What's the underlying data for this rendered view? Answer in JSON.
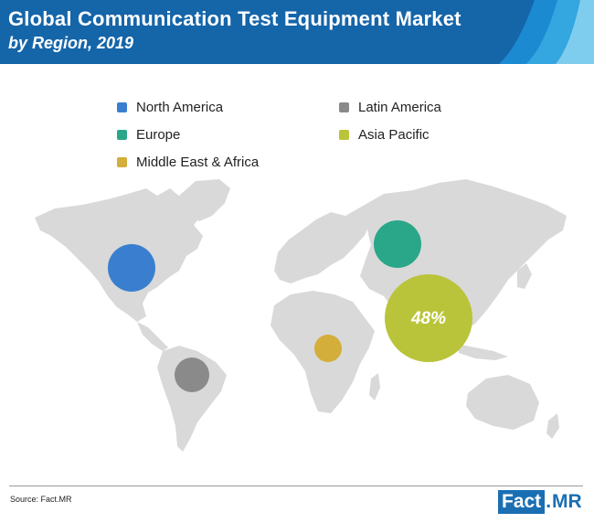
{
  "header": {
    "title": "Global Communication Test Equipment Market",
    "subtitle": "by Region, 2019"
  },
  "colors": {
    "header_bg": "#1565a9",
    "map_land": "#d9d9d9",
    "north_america": "#3a7fcf",
    "latin_america": "#8a8a8a",
    "europe": "#2aa788",
    "asia_pacific": "#b9c43a",
    "middle_east_africa": "#d4ae3b"
  },
  "legend": [
    {
      "label": "North America",
      "color": "#3a7fcf"
    },
    {
      "label": "Latin America",
      "color": "#8a8a8a"
    },
    {
      "label": "Europe",
      "color": "#2aa788"
    },
    {
      "label": "Asia Pacific",
      "color": "#b9c43a"
    },
    {
      "label": "Middle East & Africa",
      "color": "#d4ae3b"
    }
  ],
  "map_bubbles": {
    "north_america": {
      "region": "North America"
    },
    "latin_america": {
      "region": "Latin America"
    },
    "europe": {
      "region": "Europe"
    },
    "asia_pacific": {
      "region": "Asia Pacific",
      "value_label": "48%"
    },
    "middle_east_africa": {
      "region": "Middle East & Africa"
    }
  },
  "footer": {
    "source": "Source: Fact.MR",
    "logo_main": "Fact",
    "logo_dot": ".",
    "logo_suffix": "MR"
  }
}
